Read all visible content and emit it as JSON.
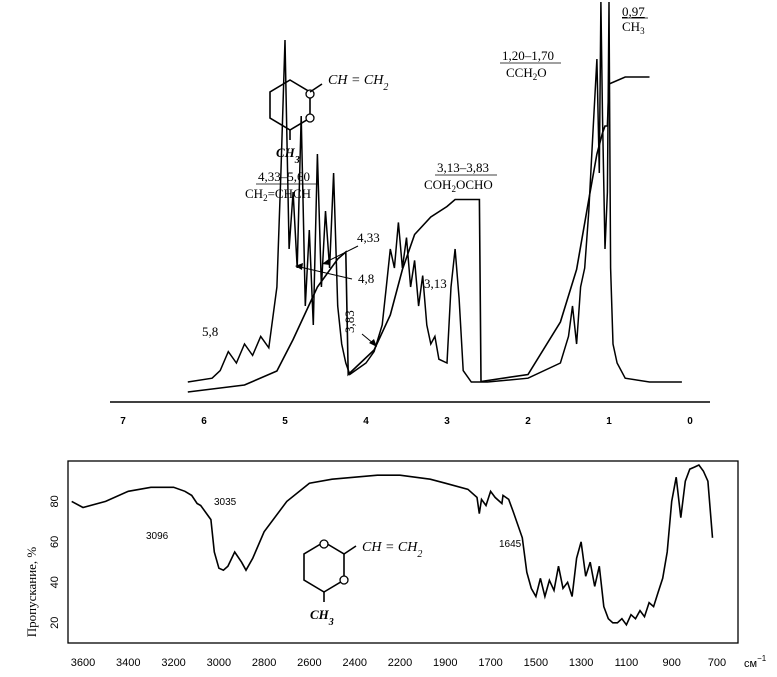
{
  "chart_data": [
    {
      "type": "line",
      "x_axis": {
        "ticks": [
          7,
          6,
          5,
          4,
          3,
          2,
          1,
          0
        ],
        "range": [
          7.3,
          -0.2
        ]
      },
      "spectrum": {
        "x": [
          6.2,
          5.9,
          5.8,
          5.7,
          5.6,
          5.5,
          5.4,
          5.3,
          5.2,
          5.1,
          5.05,
          5.0,
          4.95,
          4.9,
          4.85,
          4.8,
          4.75,
          4.7,
          4.65,
          4.6,
          4.55,
          4.5,
          4.45,
          4.4,
          4.35,
          4.3,
          4.25,
          4.2,
          4.0,
          3.9,
          3.8,
          3.75,
          3.7,
          3.65,
          3.6,
          3.55,
          3.5,
          3.45,
          3.4,
          3.35,
          3.3,
          3.25,
          3.2,
          3.15,
          3.1,
          3.0,
          2.95,
          2.9,
          2.85,
          2.8,
          2.7,
          2.5,
          2.0,
          1.6,
          1.5,
          1.45,
          1.4,
          1.35,
          1.3,
          1.25,
          1.2,
          1.15,
          1.12,
          1.1,
          1.08,
          1.05,
          1.02,
          1.0,
          0.98,
          0.95,
          0.9,
          0.8,
          0.5,
          0.1
        ],
        "y": [
          0.0,
          0.01,
          0.03,
          0.08,
          0.05,
          0.1,
          0.07,
          0.12,
          0.09,
          0.25,
          0.55,
          0.9,
          0.35,
          0.5,
          0.3,
          0.7,
          0.2,
          0.4,
          0.15,
          0.6,
          0.25,
          0.45,
          0.3,
          0.55,
          0.2,
          0.1,
          0.05,
          0.02,
          0.05,
          0.08,
          0.15,
          0.25,
          0.35,
          0.3,
          0.42,
          0.3,
          0.38,
          0.25,
          0.32,
          0.2,
          0.28,
          0.15,
          0.1,
          0.12,
          0.06,
          0.05,
          0.25,
          0.35,
          0.22,
          0.03,
          0.0,
          0.0,
          0.01,
          0.05,
          0.12,
          0.2,
          0.1,
          0.25,
          0.3,
          0.45,
          0.65,
          0.85,
          0.55,
          1.0,
          0.7,
          0.35,
          0.5,
          1.0,
          0.3,
          0.1,
          0.05,
          0.01,
          0.0,
          0.0
        ]
      },
      "integral": {
        "x": [
          6.2,
          5.5,
          5.1,
          4.9,
          4.6,
          4.35,
          4.25,
          4.22,
          3.9,
          3.7,
          3.55,
          3.4,
          3.2,
          3.0,
          2.9,
          2.6,
          2.58,
          2.0,
          1.6,
          1.4,
          1.25,
          1.15,
          1.08,
          1.05,
          1.02,
          1.0,
          0.8,
          0.5
        ],
        "y": [
          0.0,
          0.02,
          0.06,
          0.15,
          0.3,
          0.38,
          0.4,
          0.05,
          0.12,
          0.22,
          0.35,
          0.45,
          0.5,
          0.53,
          0.55,
          0.55,
          0.03,
          0.05,
          0.2,
          0.35,
          0.55,
          0.68,
          0.74,
          0.76,
          0.76,
          0.88,
          0.9,
          0.9
        ]
      },
      "annotations": {
        "ch3": {
          "top": "0,97",
          "bottom": "CH"
        },
        "cch2o": {
          "top": "1,20–1,70",
          "bottom": "CCH",
          "bottom_end": "O"
        },
        "coh2ocho": {
          "top": "3,13–3,83",
          "bottom": "COH",
          "bottom_end": "OCHO"
        },
        "ch2chch": {
          "top": "4,33–5,60",
          "bottom_a": "CH",
          "bottom_b": "=CHCH"
        },
        "p433": "4,33",
        "p48": "4,8",
        "p383": "3,83",
        "p313": "3,13",
        "p58": "5,8",
        "sub_2": "2",
        "sub_3": "3"
      },
      "structure": {
        "vinyl": "CH = CH",
        "vinyl_sub": "2",
        "methyl": "CH",
        "methyl_sub": "3"
      }
    },
    {
      "type": "line",
      "x_axis": {
        "ticks": [
          3600,
          3400,
          3200,
          3000,
          2800,
          2600,
          2400,
          2200,
          1900,
          1700,
          1500,
          1300,
          1100,
          900,
          700
        ],
        "unit": "см",
        "unit_exp": "−1"
      },
      "y_axis": {
        "label": "Пропускание, %",
        "ticks": [
          20,
          40,
          60,
          80
        ],
        "range": [
          10,
          100
        ]
      },
      "spectrum": {
        "x": [
          3650,
          3600,
          3500,
          3400,
          3300,
          3200,
          3150,
          3120,
          3096,
          3080,
          3035,
          3020,
          3000,
          2980,
          2960,
          2930,
          2900,
          2880,
          2850,
          2800,
          2700,
          2600,
          2500,
          2400,
          2300,
          2200,
          2100,
          2000,
          1900,
          1800,
          1760,
          1750,
          1740,
          1720,
          1700,
          1680,
          1650,
          1645,
          1620,
          1600,
          1560,
          1540,
          1520,
          1500,
          1480,
          1460,
          1440,
          1420,
          1400,
          1380,
          1360,
          1340,
          1320,
          1300,
          1280,
          1260,
          1240,
          1220,
          1200,
          1180,
          1160,
          1140,
          1120,
          1100,
          1080,
          1060,
          1040,
          1020,
          1000,
          980,
          960,
          940,
          920,
          900,
          880,
          860,
          840,
          820,
          800,
          780,
          760,
          740,
          720
        ],
        "y": [
          80,
          77,
          80,
          85,
          87,
          87,
          85,
          83,
          79,
          78,
          71,
          55,
          47,
          46,
          48,
          55,
          50,
          46,
          52,
          65,
          80,
          89,
          91,
          92,
          93,
          93,
          92,
          91,
          89,
          86,
          82,
          74,
          81,
          78,
          85,
          82,
          79,
          83,
          81,
          75,
          62,
          45,
          37,
          33,
          42,
          33,
          41,
          36,
          48,
          37,
          40,
          33,
          52,
          60,
          43,
          50,
          38,
          48,
          28,
          22,
          20,
          20,
          22,
          19,
          24,
          22,
          26,
          23,
          30,
          28,
          35,
          42,
          55,
          80,
          92,
          72,
          90,
          96,
          97,
          98,
          95,
          90,
          62
        ]
      },
      "peak_labels": {
        "p3096": "3096",
        "p3035": "3035",
        "p1645": "1645"
      },
      "structure": {
        "vinyl": "CH = CH",
        "vinyl_sub": "2",
        "methyl": "CH",
        "methyl_sub": "3"
      }
    }
  ]
}
